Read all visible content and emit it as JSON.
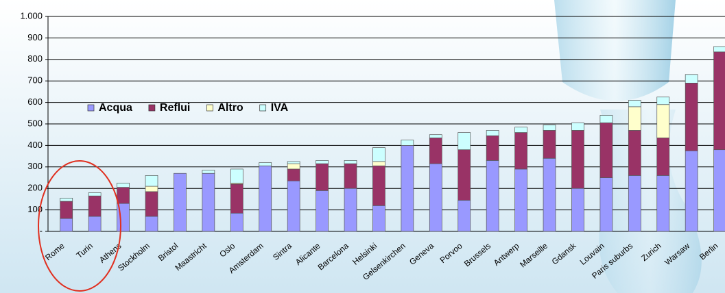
{
  "chart_data": {
    "type": "stacked-bar",
    "categories": [
      "Rome",
      "Turin",
      "Athens",
      "Stockholm",
      "Bristol",
      "Maastricht",
      "Oslo",
      "Amsterdam",
      "Sintra",
      "Alicante",
      "Barcelona",
      "Helsinki",
      "Gelsenkirchen",
      "Geneva",
      "Porvoo",
      "Brussels",
      "Antwerp",
      "Marseille",
      "Gdansk",
      "Louvain",
      "Paris suburbs",
      "Zurich",
      "Warsaw",
      "Berlin"
    ],
    "series": [
      {
        "name": "Acqua",
        "color": "#9999ff",
        "values": [
          60,
          70,
          130,
          70,
          270,
          270,
          85,
          305,
          235,
          190,
          200,
          120,
          400,
          315,
          145,
          330,
          290,
          340,
          200,
          250,
          260,
          260,
          375,
          380
        ]
      },
      {
        "name": "Reflui",
        "color": "#993366",
        "values": [
          80,
          95,
          75,
          115,
          0,
          0,
          135,
          0,
          55,
          125,
          115,
          185,
          0,
          120,
          235,
          115,
          170,
          130,
          270,
          255,
          210,
          175,
          315,
          455
        ]
      },
      {
        "name": "Altro",
        "color": "#ffffcc",
        "values": [
          0,
          0,
          0,
          25,
          0,
          0,
          5,
          0,
          25,
          0,
          0,
          20,
          0,
          0,
          0,
          0,
          0,
          0,
          0,
          0,
          110,
          155,
          0,
          0
        ]
      },
      {
        "name": "IVA",
        "color": "#ccffff",
        "values": [
          15,
          15,
          20,
          50,
          0,
          15,
          65,
          15,
          10,
          15,
          15,
          65,
          25,
          15,
          80,
          25,
          25,
          25,
          35,
          35,
          30,
          35,
          40,
          25
        ]
      }
    ],
    "ylim": [
      0,
      1000
    ],
    "yticks": [
      {
        "value": 0,
        "label": "-"
      },
      100,
      200,
      300,
      400,
      500,
      600,
      700,
      800,
      900,
      {
        "value": 1000,
        "label": "1.000"
      }
    ],
    "grid": true
  }
}
